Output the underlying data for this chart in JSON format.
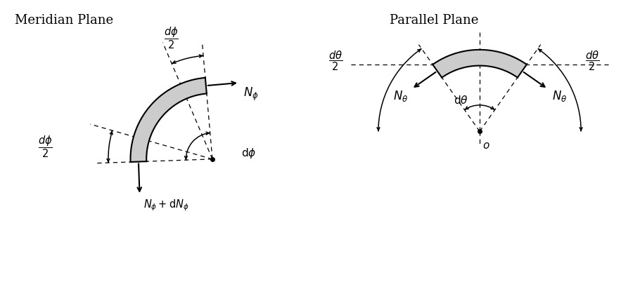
{
  "bg_color": "#ffffff",
  "line_color": "#000000",
  "shell_fill": "#cccccc",
  "shell_edge": "#000000",
  "title_left": "Meridian Plane",
  "title_right": "Parallel Plane",
  "title_fontsize": 13
}
